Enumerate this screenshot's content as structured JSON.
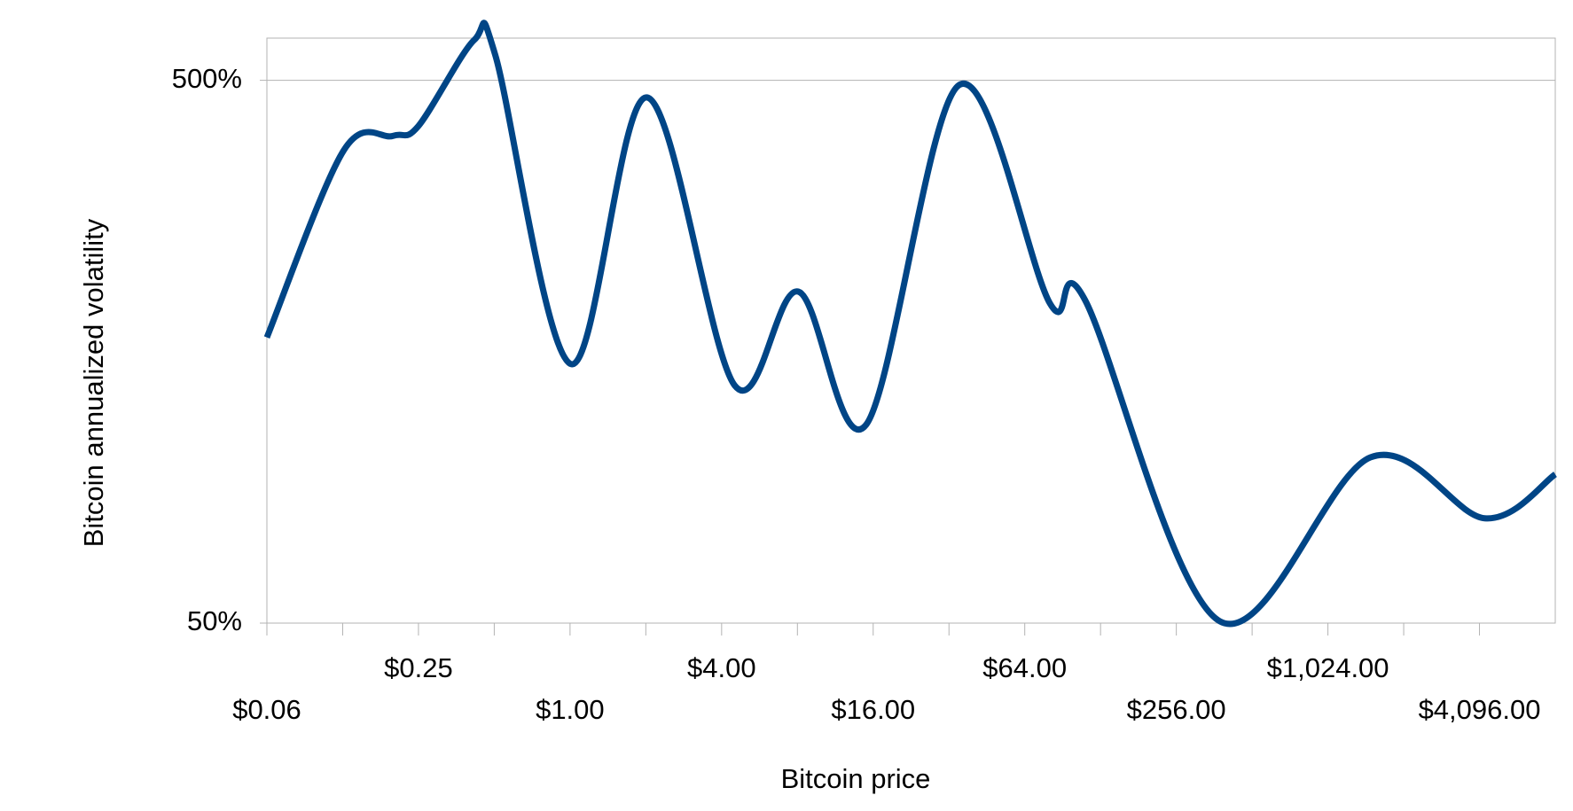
{
  "chart_data": {
    "type": "line",
    "x_label": "Bitcoin price",
    "y_label": "Bitcoin annualized volatility",
    "x": [
      0.0625,
      0.126,
      0.198,
      0.25,
      0.416,
      0.505,
      1.01,
      2.02,
      4.51,
      8.07,
      15.0,
      35.1,
      80.6,
      111,
      381,
      1511,
      4293,
      8192
    ],
    "series": [
      {
        "name": "Bitcoin annualized volatility",
        "color": "#004586",
        "values": [
          168,
          371,
          395,
          412,
          593,
          556,
          150,
          465,
          137,
          204,
          116,
          490,
          194,
          197,
          50.4,
          101,
          78,
          94
        ]
      }
    ],
    "xlog": true,
    "ylog": true,
    "xlim": [
      0.0625,
      8192
    ],
    "xticks": [
      {
        "value": 0.0625,
        "label": "$0.06"
      },
      {
        "value": 0.25,
        "label": "$0.25"
      },
      {
        "value": 1,
        "label": "$1.00"
      },
      {
        "value": 4,
        "label": "$4.00"
      },
      {
        "value": 16,
        "label": "$16.00"
      },
      {
        "value": 64,
        "label": "$64.00"
      },
      {
        "value": 256,
        "label": "$256.00"
      },
      {
        "value": 1024,
        "label": "$1,024.00"
      },
      {
        "value": 4096,
        "label": "$4,096.00"
      }
    ],
    "ylim": [
      50,
      598
    ],
    "yticks": [
      {
        "value": 50,
        "label": "50%"
      },
      {
        "value": 500,
        "label": "500%"
      }
    ],
    "grid": true
  }
}
